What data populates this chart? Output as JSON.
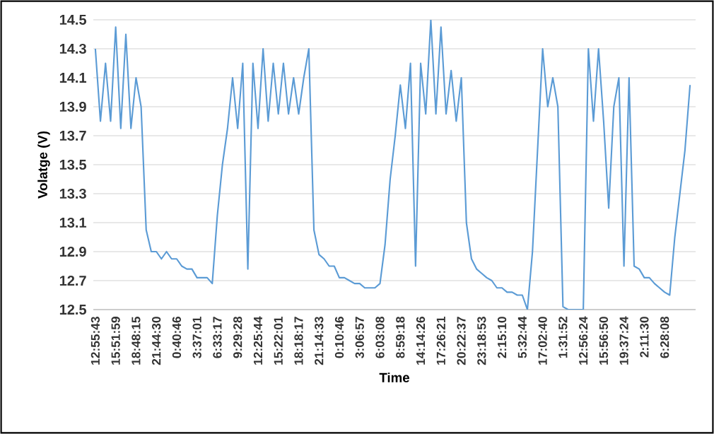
{
  "chart_data": {
    "type": "line",
    "xlabel": "Time",
    "ylabel": "Volatge (V)",
    "color": "#5b9bd5",
    "categories": [
      "12:55:43",
      null,
      null,
      null,
      "15:51:59",
      null,
      null,
      null,
      "18:48:15",
      null,
      null,
      null,
      "21:44:30",
      null,
      null,
      null,
      "0:40:46",
      null,
      null,
      null,
      "3:37:01",
      null,
      null,
      null,
      "6:33:17",
      null,
      null,
      null,
      "9:29:28",
      null,
      null,
      null,
      "12:25:44",
      null,
      null,
      null,
      "15:22:01",
      null,
      null,
      null,
      "18:18:17",
      null,
      null,
      null,
      "21:14:33",
      null,
      null,
      null,
      "0:10:46",
      null,
      null,
      null,
      "3:06:57",
      null,
      null,
      null,
      "6:03:08",
      null,
      null,
      null,
      "8:59:18",
      null,
      null,
      null,
      "14:14:26",
      null,
      null,
      null,
      "17:26:21",
      null,
      null,
      null,
      "20:22:37",
      null,
      null,
      null,
      "23:18:53",
      null,
      null,
      null,
      "2:15:10",
      null,
      null,
      null,
      "5:32:44",
      null,
      null,
      null,
      "17:02:40",
      null,
      null,
      null,
      "1:31:52",
      null,
      null,
      null,
      "12:56:24",
      null,
      null,
      null,
      "15:56:50",
      null,
      null,
      null,
      "19:37:24",
      null,
      null,
      null,
      "2:11:30",
      null,
      null,
      null,
      "6:28:08",
      null,
      null,
      null,
      null,
      null
    ],
    "values": [
      14.3,
      13.8,
      14.2,
      13.8,
      14.45,
      13.75,
      14.4,
      13.75,
      14.1,
      13.9,
      13.05,
      12.9,
      12.9,
      12.85,
      12.9,
      12.85,
      12.85,
      12.8,
      12.78,
      12.78,
      12.72,
      12.72,
      12.72,
      12.68,
      13.15,
      13.5,
      13.75,
      14.1,
      13.75,
      14.2,
      12.78,
      14.2,
      13.75,
      14.3,
      13.8,
      14.2,
      13.85,
      14.2,
      13.85,
      14.1,
      13.85,
      14.1,
      14.3,
      13.05,
      12.88,
      12.85,
      12.8,
      12.8,
      12.72,
      12.72,
      12.7,
      12.68,
      12.68,
      12.65,
      12.65,
      12.65,
      12.68,
      12.95,
      13.4,
      13.7,
      14.05,
      13.75,
      14.2,
      12.8,
      14.2,
      13.85,
      14.5,
      13.85,
      14.45,
      13.85,
      14.15,
      13.8,
      14.1,
      13.1,
      12.85,
      12.78,
      12.75,
      12.72,
      12.7,
      12.65,
      12.65,
      12.62,
      12.62,
      12.6,
      12.6,
      12.5,
      12.9,
      13.6,
      14.3,
      13.9,
      14.1,
      13.9,
      12.52,
      12.5,
      12.5,
      12.5,
      12.5,
      14.3,
      13.8,
      14.3,
      13.8,
      13.2,
      13.9,
      14.1,
      12.8,
      14.1,
      12.8,
      12.78,
      12.72,
      12.72,
      12.68,
      12.65,
      12.62,
      12.6,
      13.0,
      13.3,
      13.6,
      14.05
    ],
    "ylim": [
      12.5,
      14.5
    ],
    "yticks": [
      12.5,
      12.7,
      12.9,
      13.1,
      13.3,
      13.5,
      13.7,
      13.9,
      14.1,
      14.3,
      14.5
    ],
    "grid": "y"
  }
}
